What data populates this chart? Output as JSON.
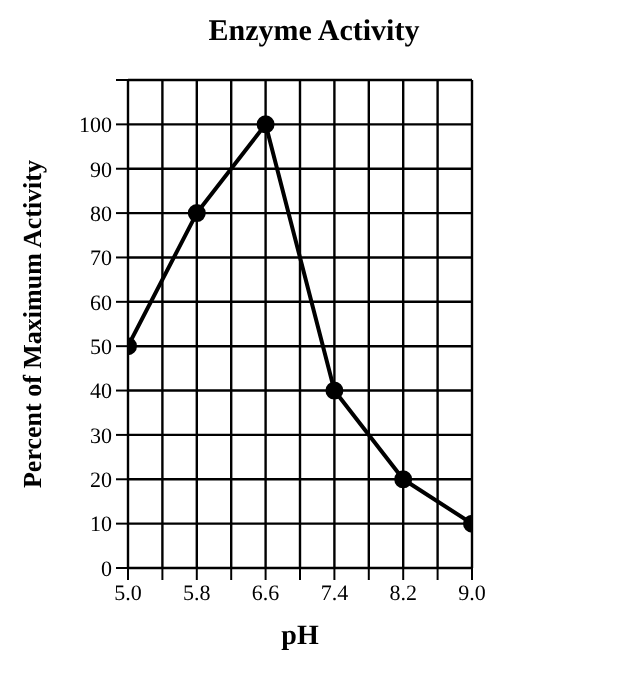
{
  "chart_data": {
    "type": "line",
    "title": "Enzyme Activity",
    "xlabel": "pH",
    "ylabel": "Percent of Maximum Activity",
    "x": [
      5.0,
      5.8,
      6.6,
      7.4,
      8.2,
      9.0
    ],
    "series": [
      {
        "color": "#000000",
        "values": [
          50,
          80,
          100,
          40,
          20,
          10
        ]
      }
    ],
    "xlim": [
      5.0,
      9.0
    ],
    "xticks": [
      {
        "value": 5.0,
        "label": "5.0"
      },
      {
        "value": 5.4,
        "label": null
      },
      {
        "value": 5.8,
        "label": "5.8"
      },
      {
        "value": 6.2,
        "label": null
      },
      {
        "value": 6.6,
        "label": "6.6"
      },
      {
        "value": 7.0,
        "label": null
      },
      {
        "value": 7.4,
        "label": "7.4"
      },
      {
        "value": 7.8,
        "label": null
      },
      {
        "value": 8.2,
        "label": "8.2"
      },
      {
        "value": 8.6,
        "label": null
      },
      {
        "value": 9.0,
        "label": "9.0"
      }
    ],
    "ylim": [
      0,
      110
    ],
    "yticks": [
      0,
      10,
      20,
      30,
      40,
      50,
      60,
      70,
      80,
      90,
      100,
      {
        "value": 110,
        "label": null
      }
    ],
    "grid": true,
    "marker": "circle",
    "line_style": "solid"
  }
}
